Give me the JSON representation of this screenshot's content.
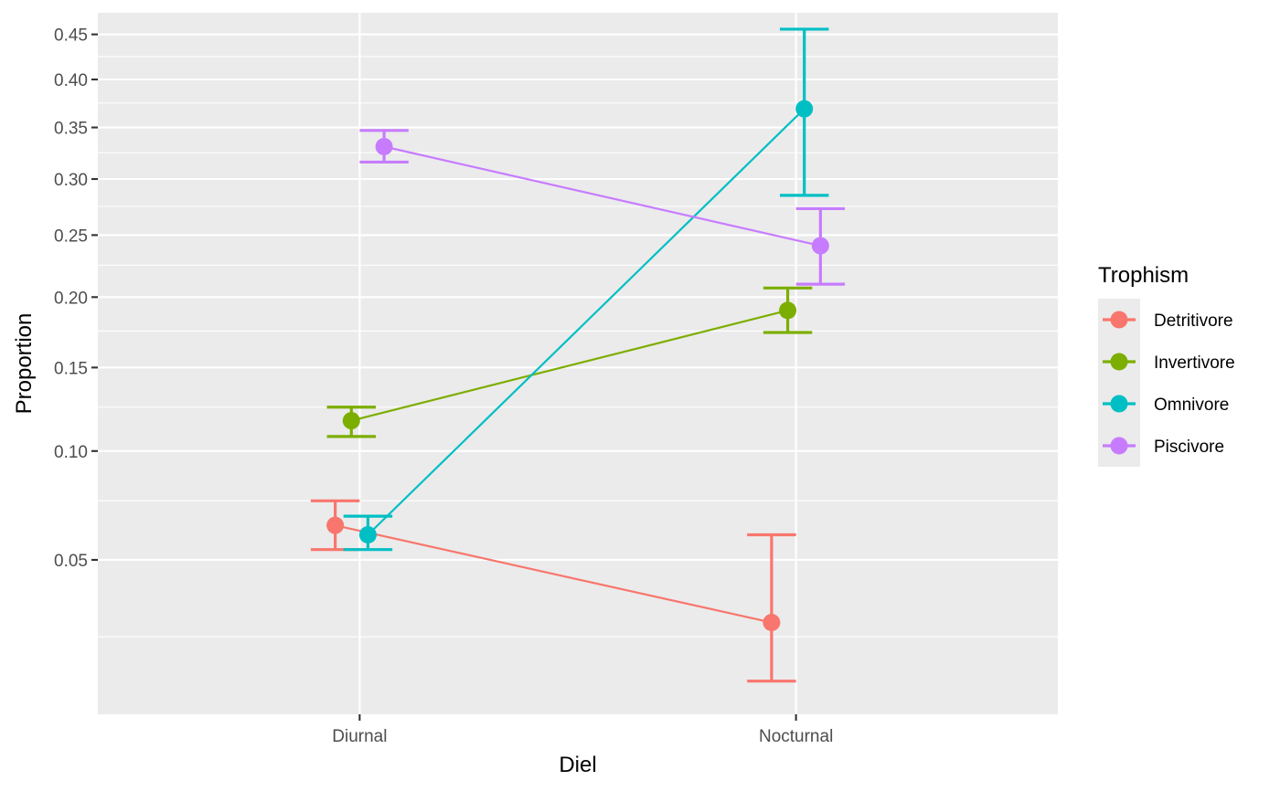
{
  "chart_data": {
    "type": "line",
    "title": "",
    "xlabel": "Diel",
    "ylabel": "Proportion",
    "y_scale": "sqrt",
    "ylim": [
      0.0085,
      0.475
    ],
    "y_ticks": [
      0.05,
      0.1,
      0.15,
      0.2,
      0.25,
      0.3,
      0.35,
      0.4,
      0.45
    ],
    "y_tick_labels": [
      "0.05",
      "0.10",
      "0.15",
      "0.20",
      "0.25",
      "0.30",
      "0.35",
      "0.40",
      "0.45"
    ],
    "y_minor_ticks": [
      0.025,
      0.075,
      0.125,
      0.175,
      0.225,
      0.275,
      0.325,
      0.375,
      0.425
    ],
    "categories": [
      "Diurnal",
      "Nocturnal"
    ],
    "grid": true,
    "dodge": [
      -0.056,
      -0.019,
      0.019,
      0.056
    ],
    "legend": {
      "title": "Trophism",
      "position": "right"
    },
    "series": [
      {
        "name": "Detritivore",
        "color": "#F8766D",
        "values": [
          0.064,
          0.029
        ],
        "lower": [
          0.054,
          0.0145
        ],
        "upper": [
          0.075,
          0.06
        ]
      },
      {
        "name": "Invertivore",
        "color": "#7CAE00",
        "values": [
          0.117,
          0.19
        ],
        "lower": [
          0.108,
          0.174
        ],
        "upper": [
          0.125,
          0.207
        ]
      },
      {
        "name": "Omnivore",
        "color": "#00BFC4",
        "values": [
          0.06,
          0.369
        ],
        "lower": [
          0.054,
          0.285
        ],
        "upper": [
          0.068,
          0.456
        ]
      },
      {
        "name": "Piscivore",
        "color": "#C77CFF",
        "values": [
          0.331,
          0.241
        ],
        "lower": [
          0.316,
          0.21
        ],
        "upper": [
          0.347,
          0.273
        ]
      }
    ]
  }
}
